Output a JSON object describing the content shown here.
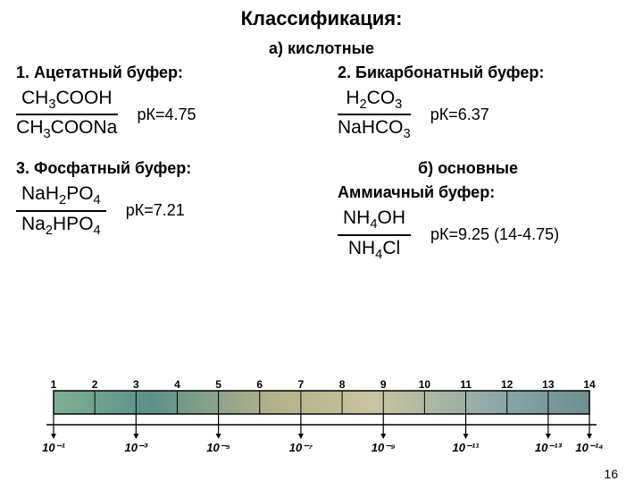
{
  "title": "Классификация:",
  "sectionA": "а) кислотные",
  "sectionB": "б) основные",
  "buffers": {
    "acetate": {
      "heading": "1. Ацетатный буфер:",
      "num": "CH3COOH",
      "den": "CH3COONa",
      "pk": "рК=4.75"
    },
    "bicarb": {
      "heading": "2. Бикарбонатный буфер:",
      "num": "H2CO3",
      "den": "NaHCO3",
      "pk": "рК=6.37"
    },
    "phosphate": {
      "heading": "3. Фосфатный буфер:",
      "num": "NaH2PO4",
      "den": "Na2HPO4",
      "pk": "рК=7.21"
    },
    "ammonia": {
      "heading": "Аммиачный буфер:",
      "num": "NH4OH",
      "den": "NH4Cl",
      "pk": "рК=9.25 (14-4.75)"
    }
  },
  "scale": {
    "ticks": [
      "1",
      "2",
      "3",
      "4",
      "5",
      "6",
      "7",
      "8",
      "9",
      "10",
      "11",
      "12",
      "13",
      "14"
    ],
    "bottom_labels": [
      "10⁻¹",
      "10⁻³",
      "10⁻⁵",
      "10⁻⁷",
      "10⁻⁹",
      "10⁻¹¹",
      "10⁻¹³",
      "10⁻¹⁴"
    ],
    "gradient_stops": [
      {
        "offset": "0%",
        "color": "#7fae95"
      },
      {
        "offset": "18%",
        "color": "#5a9289"
      },
      {
        "offset": "40%",
        "color": "#b0b08a"
      },
      {
        "offset": "60%",
        "color": "#c8c4a0"
      },
      {
        "offset": "82%",
        "color": "#8fa8a8"
      },
      {
        "offset": "100%",
        "color": "#6b8e8e"
      }
    ],
    "border_color": "#000000",
    "tick_font": "12",
    "label_font": "13"
  },
  "page": "16"
}
